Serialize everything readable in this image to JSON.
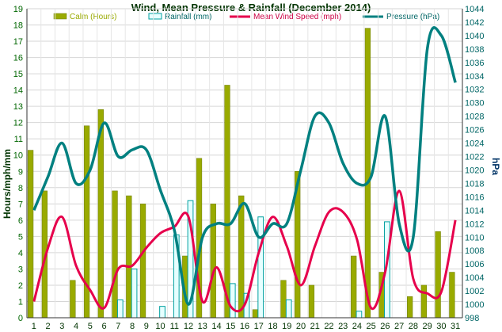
{
  "chart_data": {
    "type": "bar",
    "title": "Wind, Mean Pressure & Rainfall (December 2014)",
    "ylabel": "Hours/mph/mm",
    "y2label": "hPa",
    "ylim": [
      0,
      19
    ],
    "y2lim": [
      998,
      1044
    ],
    "x": [
      1,
      2,
      3,
      4,
      5,
      6,
      7,
      8,
      9,
      10,
      11,
      12,
      13,
      14,
      15,
      16,
      17,
      18,
      19,
      20,
      21,
      22,
      23,
      24,
      25,
      26,
      27,
      28,
      29,
      30,
      31
    ],
    "grid": true,
    "legend_position": "top",
    "series": [
      {
        "name": "Calm (Hours)",
        "type": "bar",
        "axis": "left",
        "color": "#99aa00",
        "values": [
          10.3,
          7.8,
          0,
          2.3,
          11.8,
          12.8,
          7.8,
          7.5,
          7.0,
          0,
          0,
          3.8,
          9.8,
          7.0,
          14.3,
          7.5,
          0.5,
          0,
          2.3,
          9.0,
          2.0,
          0,
          0,
          3.8,
          17.8,
          2.8,
          0,
          1.3,
          2.0,
          5.3,
          2.8
        ]
      },
      {
        "name": "Rainfall (mm)",
        "type": "bar",
        "axis": "left",
        "color": "#e6ffff",
        "stroke": "#00a0a0",
        "values": [
          0,
          0,
          0,
          0,
          0,
          0,
          1.1,
          3.0,
          0,
          0.7,
          5.1,
          7.2,
          0,
          0,
          2.1,
          1.5,
          6.2,
          0,
          1.1,
          0,
          0,
          0,
          0,
          0.4,
          0,
          5.9,
          0,
          0,
          0,
          0,
          0
        ]
      },
      {
        "name": "Mean Wind Speed (mph)",
        "type": "line",
        "axis": "left",
        "color": "#e6004c",
        "values": [
          1.0,
          4.3,
          6.2,
          3.2,
          1.7,
          0.6,
          3.0,
          3.2,
          4.3,
          5.2,
          5.6,
          6.2,
          1.0,
          3.1,
          0.7,
          0.8,
          4.0,
          6.2,
          4.4,
          2.0,
          4.4,
          6.5,
          6.5,
          4.8,
          0.6,
          2.8,
          7.8,
          2.4,
          1.5,
          1.6,
          6.0
        ]
      },
      {
        "name": "Pressure (hPa)",
        "type": "line",
        "axis": "right",
        "color": "#008080",
        "values": [
          1014,
          1019,
          1024,
          1018,
          1020,
          1027,
          1022,
          1023,
          1023,
          1017,
          1011,
          1000,
          1010,
          1012,
          1012,
          1015,
          1010,
          1012,
          1012,
          1020,
          1028,
          1027,
          1021,
          1018,
          1019,
          1028,
          1012,
          1010,
          1038,
          1040,
          1033
        ]
      }
    ]
  }
}
